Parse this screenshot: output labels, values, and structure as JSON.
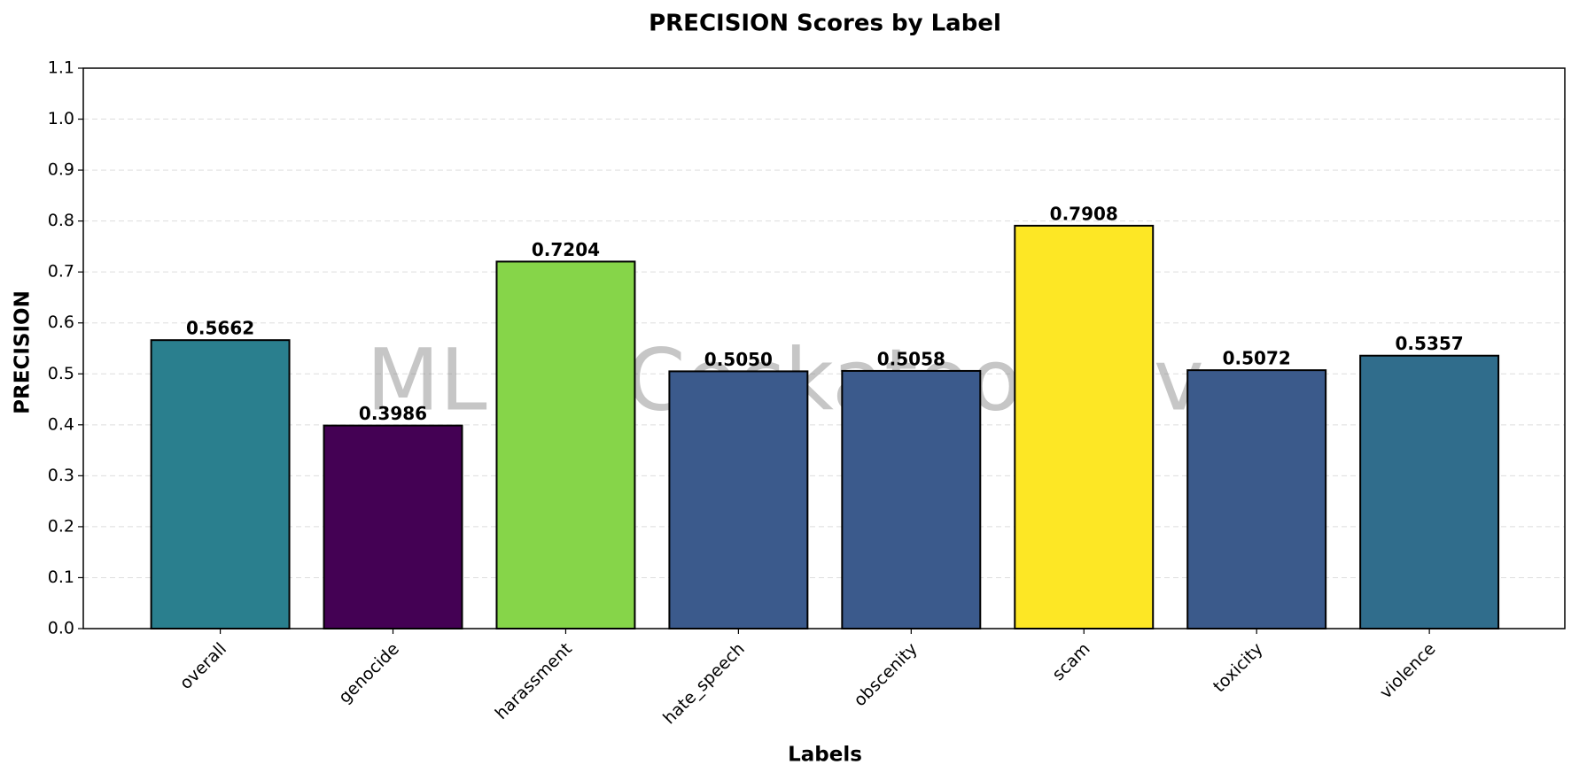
{
  "chart_data": {
    "type": "bar",
    "title": "PRECISION Scores by Label",
    "x_label": "Labels",
    "y_label": "PRECISION",
    "watermark": "ML @ Cockatoo.dev",
    "categories": [
      "overall",
      "genocide",
      "harassment",
      "hate_speech",
      "obscenity",
      "scam",
      "toxicity",
      "violence"
    ],
    "values": [
      0.5662,
      0.3986,
      0.7204,
      0.505,
      0.5058,
      0.7908,
      0.5072,
      0.5357
    ],
    "value_labels": [
      "0.5662",
      "0.3986",
      "0.7204",
      "0.5050",
      "0.5058",
      "0.7908",
      "0.5072",
      "0.5357"
    ],
    "colors": [
      "#2a7f8e",
      "#440154",
      "#86d549",
      "#3b5a8c",
      "#3b5a8c",
      "#fde725",
      "#3b5a8b",
      "#306d8c"
    ],
    "ylim": [
      0,
      1.1
    ],
    "yticks": [
      {
        "value": 0,
        "label": "0.0"
      },
      0.1,
      0.2,
      0.3,
      0.4,
      0.5,
      0.6,
      0.7,
      0.8,
      0.9,
      {
        "value": 1,
        "label": "1.0"
      },
      1.1
    ],
    "grid": true
  }
}
